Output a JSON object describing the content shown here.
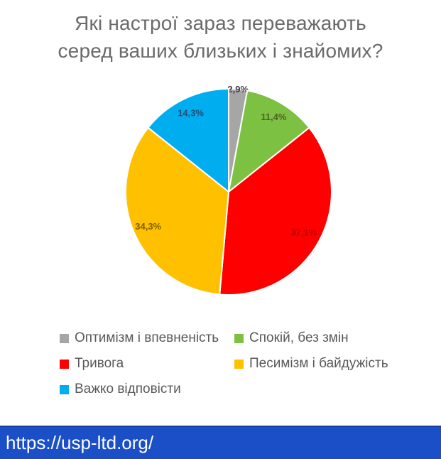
{
  "title": {
    "line1": "Які настрої зараз переважають",
    "line2": "серед ваших близьких і знайомих?"
  },
  "chart_data": {
    "type": "pie",
    "title": "Які настрої зараз переважають серед ваших близьких і знайомих?",
    "units": "percent",
    "start_angle_deg": 0,
    "direction": "clockwise",
    "legend_position": "bottom",
    "legend_columns": 2,
    "slices": [
      {
        "label": "Оптимізм і впевненість",
        "value": 2.9,
        "display": "2,9%",
        "color": "#a6a6a6",
        "label_color": "#404040",
        "label_radius_frac": 1.0
      },
      {
        "label": "Спокій, без змін",
        "value": 11.4,
        "display": "11,4%",
        "color": "#7dc142",
        "label_color": "#4f6228",
        "label_radius_frac": 0.85
      },
      {
        "label": "Тривога",
        "value": 37.1,
        "display": "37,1%",
        "color": "#fe0000",
        "label_color": "#c00000",
        "label_radius_frac": 0.83
      },
      {
        "label": "Песимізм і байдужість",
        "value": 34.3,
        "display": "34,3%",
        "color": "#ffc000",
        "label_color": "#7f6000",
        "label_radius_frac": 0.85
      },
      {
        "label": "Важко відповісти",
        "value": 14.3,
        "display": "14,3%",
        "color": "#00aeef",
        "label_color": "#1f4e79",
        "label_radius_frac": 0.85
      }
    ]
  },
  "footer": {
    "url": "https://usp-ltd.org/",
    "bg_color": "#1b4fc8",
    "text_color": "#ffffff"
  }
}
